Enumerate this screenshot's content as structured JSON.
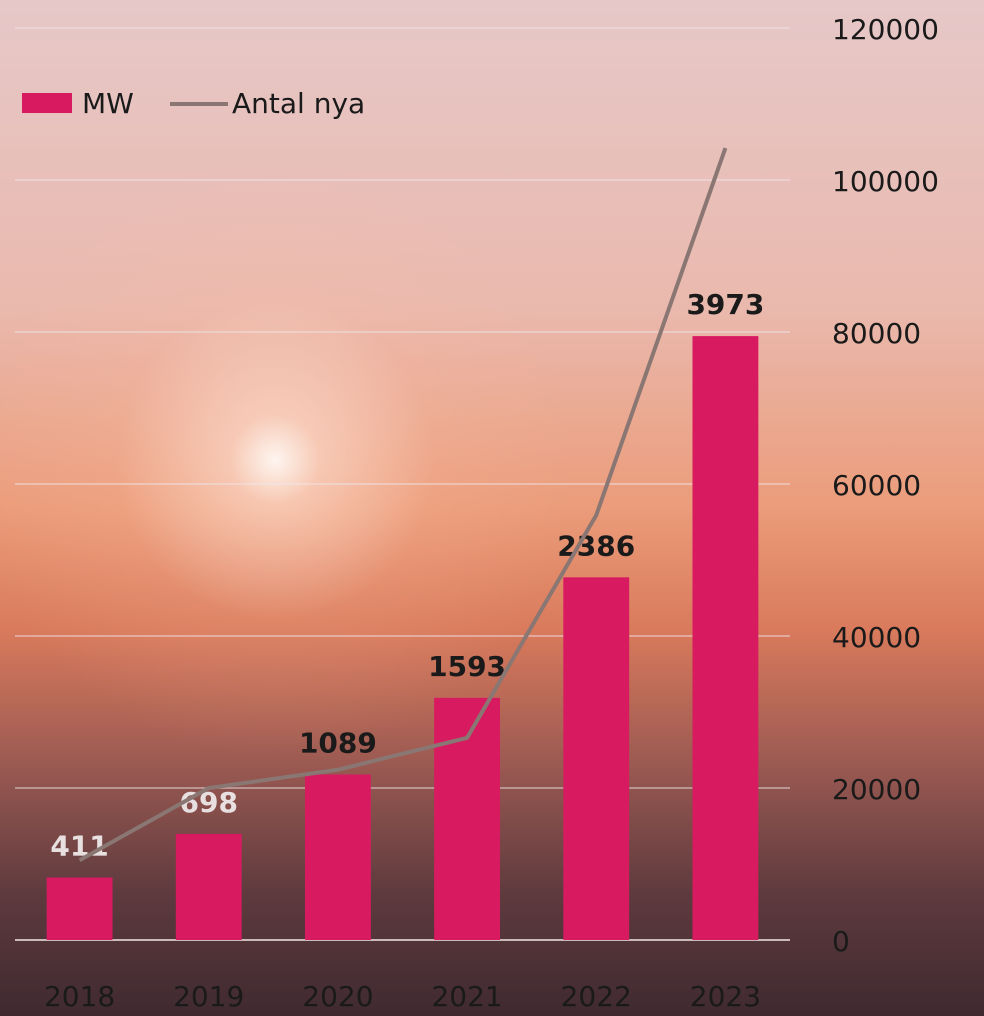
{
  "chart_data": {
    "type": "bar_line",
    "categories": [
      "2018",
      "2019",
      "2020",
      "2021",
      "2022",
      "2023"
    ],
    "series": [
      {
        "name": "MW",
        "type": "bar",
        "color": "#d81b60",
        "values": [
          411,
          698,
          1089,
          1593,
          2386,
          3973
        ],
        "value_label_colors": [
          "#e8e0e0",
          "#e8e0e0",
          "#1a1a1a",
          "#1a1a1a",
          "#1a1a1a",
          "#1a1a1a"
        ]
      },
      {
        "name": "Antal nya",
        "type": "line",
        "axis": "y2",
        "color": "#8a7672",
        "values": [
          10500,
          20000,
          22400,
          26600,
          55900,
          104200
        ]
      }
    ],
    "ylim": [
      0,
      6000
    ],
    "y2lim": [
      0,
      120000
    ],
    "y2ticks": [
      0,
      20000,
      40000,
      60000,
      80000,
      100000,
      120000
    ],
    "grid": true,
    "legend": "top-left"
  }
}
